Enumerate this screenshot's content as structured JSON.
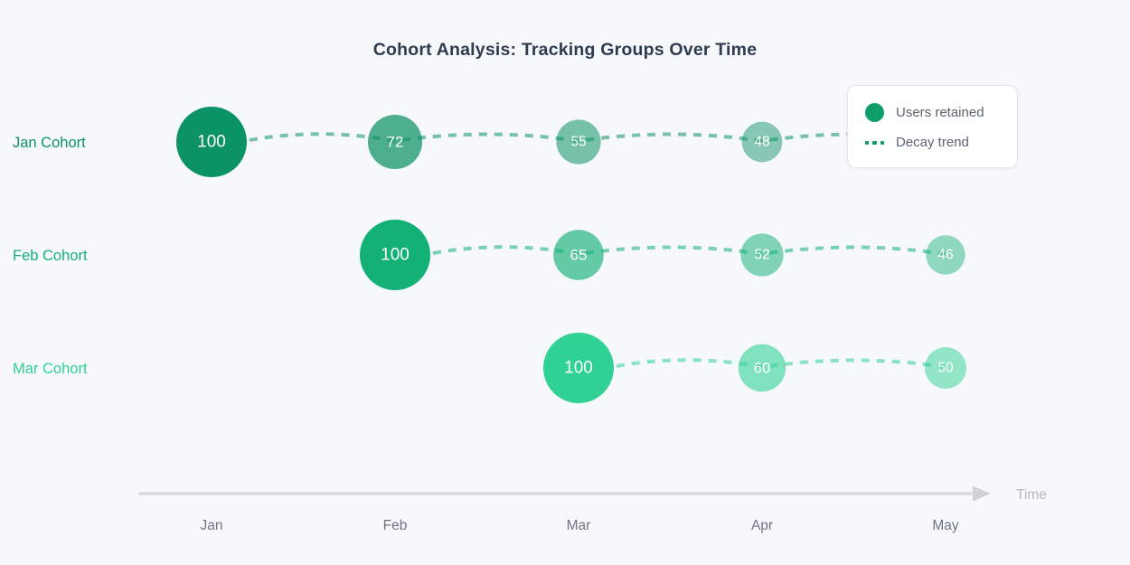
{
  "title": "Cohort Analysis: Tracking Groups Over Time",
  "legend": {
    "items": [
      {
        "label": "Users retained",
        "swatch": "dot",
        "color": "#0e9e68"
      },
      {
        "label": "Decay trend",
        "swatch": "dashes",
        "color": "#0e9e68"
      }
    ]
  },
  "axis": {
    "label": "Time"
  },
  "colors": {
    "background": "#f7f8fb",
    "title_text": "#2e3c50",
    "axis_line": "#d5d8dd",
    "axis_arrow": "#cfd3d9",
    "month_tick_text": "#6e7683",
    "time_label_text": "#b3bac5",
    "bubble_value_text": "#ffffff"
  },
  "chart_data": {
    "type": "bubble",
    "title": "Cohort Analysis: Tracking Groups Over Time",
    "x_labels": [
      "Jan",
      "Feb",
      "Mar",
      "Apr",
      "May"
    ],
    "xlabel": "Time",
    "grid": false,
    "legend_position": "top-right",
    "encoding": {
      "bubble_size": "value",
      "bubble_opacity": "value/100",
      "trend": "dashed line through points"
    },
    "series": [
      {
        "name": "Jan Cohort",
        "color": "#0c9365",
        "points": [
          {
            "x": "Jan",
            "value": 100
          },
          {
            "x": "Feb",
            "value": 72
          },
          {
            "x": "Mar",
            "value": 55
          },
          {
            "x": "Apr",
            "value": 48
          }
        ],
        "trend_extends_to": "May"
      },
      {
        "name": "Feb Cohort",
        "color": "#14b176",
        "points": [
          {
            "x": "Feb",
            "value": 100
          },
          {
            "x": "Mar",
            "value": 65
          },
          {
            "x": "Apr",
            "value": 52
          },
          {
            "x": "May",
            "value": 46
          }
        ]
      },
      {
        "name": "Mar Cohort",
        "color": "#2fd294",
        "points": [
          {
            "x": "Mar",
            "value": 100
          },
          {
            "x": "Apr",
            "value": 60
          },
          {
            "x": "May",
            "value": 50
          }
        ]
      }
    ]
  }
}
